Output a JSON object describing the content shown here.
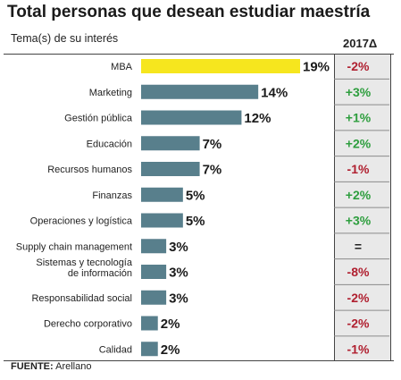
{
  "chart_data": {
    "type": "bar",
    "orientation": "horizontal",
    "title": "Total personas que desean estudiar maestría",
    "subtitle": "Tema(s) de su interés",
    "categories": [
      "MBA",
      "Marketing",
      "Gestión pública",
      "Educación",
      "Recursos humanos",
      "Finanzas",
      "Operaciones y logística",
      "Supply chain management",
      "Sistemas y tecnología de información",
      "Responsabilidad social",
      "Derecho corporativo",
      "Calidad"
    ],
    "values": [
      19,
      14,
      12,
      7,
      7,
      5,
      5,
      3,
      3,
      3,
      2,
      2
    ],
    "value_labels": [
      "19%",
      "14%",
      "12%",
      "7%",
      "7%",
      "5%",
      "5%",
      "3%",
      "3%",
      "3%",
      "2%",
      "2%"
    ],
    "delta_header": "2017Δ",
    "deltas": [
      "-2%",
      "+3%",
      "+1%",
      "+2%",
      "-1%",
      "+2%",
      "+3%",
      "=",
      "-8%",
      "-2%",
      "-2%",
      "-1%"
    ],
    "xlim": [
      0,
      19
    ],
    "grid": false,
    "legend": "none",
    "colors": {
      "highlight": "#f6e61e",
      "bar": "#587f8c",
      "positive": "#2e9e3e",
      "negative": "#b02030",
      "neutral": "#222222"
    }
  },
  "source": {
    "label": "FUENTE:",
    "text": " Arellano"
  }
}
